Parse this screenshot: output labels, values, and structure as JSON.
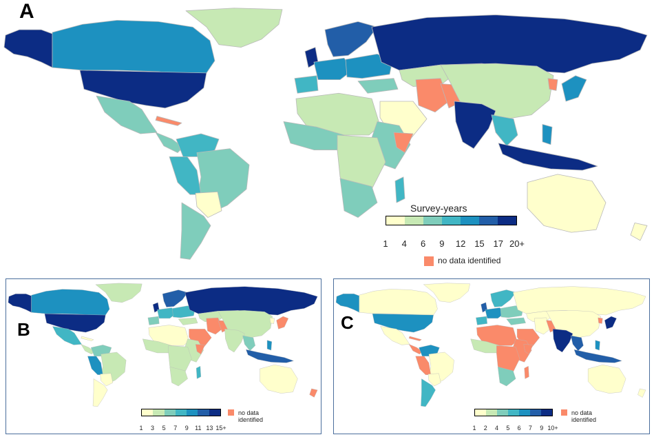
{
  "colors": {
    "ocean": "#ffffff",
    "no_data": "#fa8a6a",
    "border": "#b9b9b9"
  },
  "panels": [
    {
      "letter": "A",
      "legend": {
        "title": "Survey-years",
        "ticks": [
          "1",
          "4",
          "6",
          "9",
          "12",
          "15",
          "17",
          "20+"
        ],
        "colors": [
          "#ffffcc",
          "#c7e9b4",
          "#7fcdbb",
          "#41b6c4",
          "#1d91c0",
          "#225ea8",
          "#0c2c84"
        ],
        "no_data_label": "no data identified"
      }
    },
    {
      "letter": "B",
      "legend": {
        "ticks": [
          "1",
          "3",
          "5",
          "7",
          "9",
          "11",
          "13",
          "15+"
        ],
        "colors": [
          "#ffffcc",
          "#c7e9b4",
          "#7fcdbb",
          "#41b6c4",
          "#1d91c0",
          "#225ea8",
          "#0c2c84"
        ],
        "no_data_label": "no data\nidentified"
      }
    },
    {
      "letter": "C",
      "legend": {
        "ticks": [
          "1",
          "2",
          "4",
          "5",
          "6",
          "7",
          "9",
          "10+"
        ],
        "colors": [
          "#ffffcc",
          "#c7e9b4",
          "#7fcdbb",
          "#41b6c4",
          "#1d91c0",
          "#225ea8",
          "#0c2c84"
        ],
        "no_data_label": "no data\nidentified"
      }
    }
  ]
}
